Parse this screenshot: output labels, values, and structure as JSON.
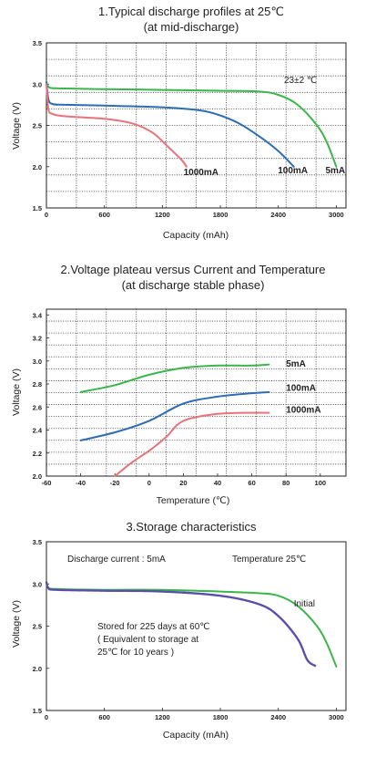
{
  "chart_data": [
    {
      "type": "line",
      "title": "1.Typical discharge profiles at 25℃",
      "subtitle": "(at mid-discharge)",
      "xlabel": "Capacity (mAh)",
      "ylabel": "Voltage (V)",
      "xlim": [
        0,
        3100
      ],
      "ylim": [
        1.5,
        3.5
      ],
      "x_ticks": [
        "0",
        "600",
        "1200",
        "1800",
        "2400",
        "3000"
      ],
      "y_ticks": [
        "1.5",
        "2.0",
        "2.5",
        "3.0",
        "3.5"
      ],
      "grid": true,
      "annotation": "23±2 ℃",
      "series": [
        {
          "name": "5mA",
          "color": "#3cb54a",
          "points": [
            [
              0,
              3.03
            ],
            [
              20,
              2.97
            ],
            [
              100,
              2.95
            ],
            [
              600,
              2.94
            ],
            [
              1200,
              2.93
            ],
            [
              1800,
              2.92
            ],
            [
              2200,
              2.91
            ],
            [
              2400,
              2.87
            ],
            [
              2600,
              2.75
            ],
            [
              2800,
              2.5
            ],
            [
              2900,
              2.3
            ],
            [
              3000,
              2.0
            ]
          ]
        },
        {
          "name": "100mA",
          "color": "#2e6db4",
          "points": [
            [
              0,
              3.02
            ],
            [
              20,
              2.82
            ],
            [
              60,
              2.76
            ],
            [
              200,
              2.75
            ],
            [
              600,
              2.74
            ],
            [
              1200,
              2.72
            ],
            [
              1600,
              2.68
            ],
            [
              1800,
              2.62
            ],
            [
              2000,
              2.52
            ],
            [
              2200,
              2.37
            ],
            [
              2400,
              2.19
            ],
            [
              2560,
              2.0
            ]
          ]
        },
        {
          "name": "1000mA",
          "color": "#e8737b",
          "points": [
            [
              0,
              3.0
            ],
            [
              20,
              2.7
            ],
            [
              60,
              2.64
            ],
            [
              200,
              2.61
            ],
            [
              600,
              2.58
            ],
            [
              900,
              2.52
            ],
            [
              1100,
              2.41
            ],
            [
              1250,
              2.25
            ],
            [
              1400,
              2.08
            ],
            [
              1450,
              2.0
            ]
          ]
        }
      ],
      "series_labels": [
        {
          "text": "1000mA",
          "x": 1600,
          "y": 1.9
        },
        {
          "text": "100mA",
          "x": 2550,
          "y": 1.92
        },
        {
          "text": "5mA",
          "x": 2990,
          "y": 1.92
        }
      ]
    },
    {
      "type": "line",
      "title": "2.Voltage plateau versus Current and Temperature",
      "subtitle": "(at discharge stable phase)",
      "xlabel": "Temperature (℃)",
      "ylabel": "Voltage (V)",
      "xlim": [
        -60,
        115
      ],
      "ylim": [
        2.0,
        3.45
      ],
      "x_ticks": [
        "-60",
        "-40",
        "-20",
        "0",
        "20",
        "40",
        "60",
        "80",
        "100"
      ],
      "y_ticks": [
        "2.0",
        "2.2",
        "2.4",
        "2.6",
        "2.8",
        "3.0",
        "3.2",
        "3.4"
      ],
      "grid": true,
      "series": [
        {
          "name": "5mA",
          "color": "#3cb54a",
          "points": [
            [
              -40,
              2.73
            ],
            [
              -20,
              2.79
            ],
            [
              0,
              2.88
            ],
            [
              20,
              2.94
            ],
            [
              40,
              2.96
            ],
            [
              60,
              2.96
            ],
            [
              70,
              2.97
            ]
          ]
        },
        {
          "name": "100mA",
          "color": "#2e6db4",
          "points": [
            [
              -40,
              2.31
            ],
            [
              -20,
              2.38
            ],
            [
              0,
              2.48
            ],
            [
              20,
              2.63
            ],
            [
              40,
              2.69
            ],
            [
              60,
              2.72
            ],
            [
              70,
              2.73
            ]
          ]
        },
        {
          "name": "1000mA",
          "color": "#e8737b",
          "points": [
            [
              -20,
              2.0
            ],
            [
              -10,
              2.12
            ],
            [
              0,
              2.22
            ],
            [
              10,
              2.34
            ],
            [
              20,
              2.48
            ],
            [
              40,
              2.54
            ],
            [
              60,
              2.55
            ],
            [
              70,
              2.55
            ]
          ]
        }
      ],
      "series_labels": [
        {
          "text": "5mA",
          "x": 80,
          "y": 2.95
        },
        {
          "text": "100mA",
          "x": 80,
          "y": 2.74
        },
        {
          "text": "1000mA",
          "x": 80,
          "y": 2.55
        }
      ]
    },
    {
      "type": "line",
      "title": "3.Storage characteristics",
      "xlabel": "Capacity (mAh)",
      "ylabel": "Voltage (V)",
      "xlim": [
        0,
        3100
      ],
      "ylim": [
        1.5,
        3.5
      ],
      "x_ticks": [
        "0",
        "600",
        "1200",
        "1800",
        "2400",
        "3000"
      ],
      "y_ticks": [
        "1.5",
        "2.0",
        "2.5",
        "3.0",
        "3.5"
      ],
      "grid": false,
      "annotations": [
        "Discharge current : 5mA",
        "Temperature  25℃",
        "Stored for 225 days at 60℃",
        "( Equivalent to storage at",
        "25℃ for 10 years )"
      ],
      "series": [
        {
          "name": "Initial",
          "color": "#3cb54a",
          "points": [
            [
              0,
              3.02
            ],
            [
              20,
              2.96
            ],
            [
              100,
              2.94
            ],
            [
              600,
              2.93
            ],
            [
              1200,
              2.93
            ],
            [
              1800,
              2.91
            ],
            [
              2200,
              2.89
            ],
            [
              2400,
              2.86
            ],
            [
              2600,
              2.74
            ],
            [
              2800,
              2.5
            ],
            [
              2900,
              2.3
            ],
            [
              3000,
              2.02
            ]
          ]
        },
        {
          "name": "Stored for 225 days at 60℃",
          "color": "#5a4fa8",
          "points": [
            [
              0,
              3.02
            ],
            [
              20,
              2.95
            ],
            [
              100,
              2.93
            ],
            [
              600,
              2.92
            ],
            [
              1200,
              2.91
            ],
            [
              1800,
              2.86
            ],
            [
              2200,
              2.76
            ],
            [
              2400,
              2.62
            ],
            [
              2600,
              2.35
            ],
            [
              2700,
              2.1
            ],
            [
              2780,
              2.03
            ]
          ]
        }
      ],
      "series_labels": [
        {
          "text": "Initial",
          "x": 2560,
          "y": 2.73
        }
      ]
    }
  ]
}
